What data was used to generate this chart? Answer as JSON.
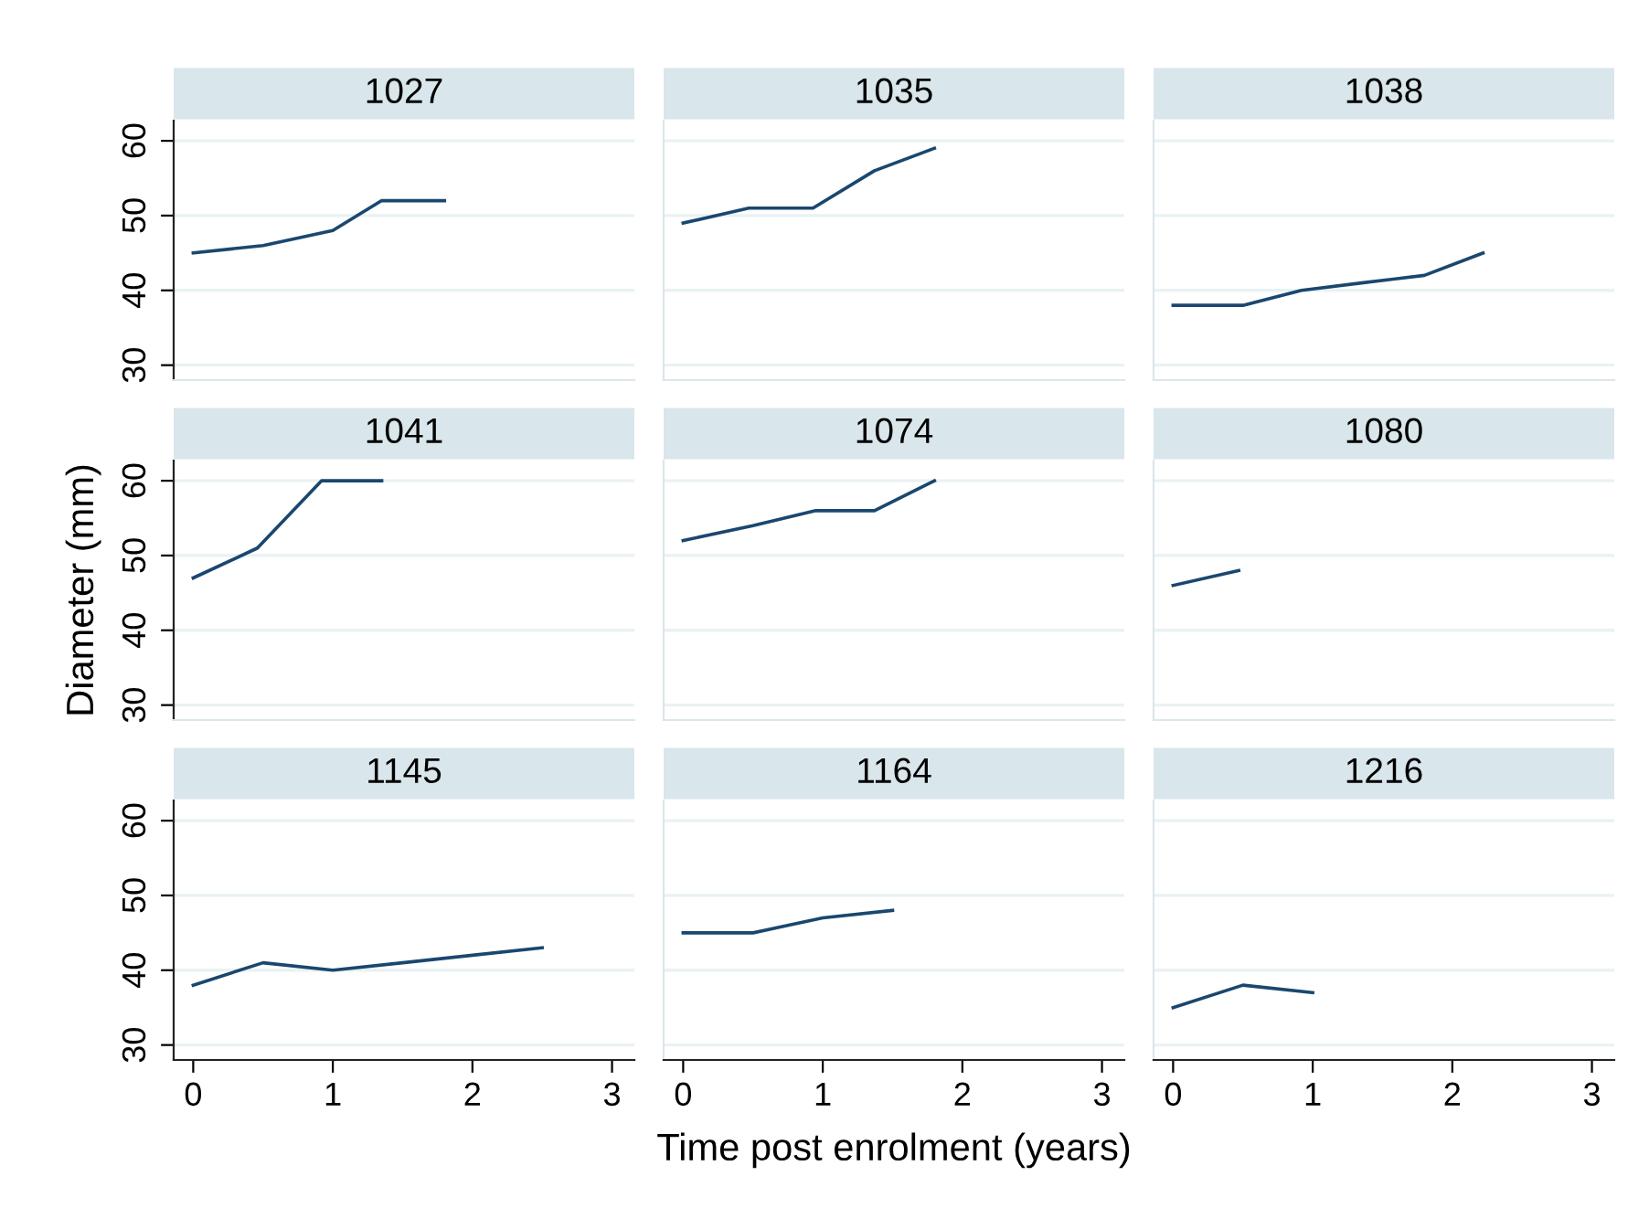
{
  "chart_data": [
    {
      "type": "line",
      "title": "1027",
      "x": [
        0,
        0.5,
        1,
        1.35,
        1.8
      ],
      "series": [
        {
          "color": "#1a476f",
          "values": [
            45,
            46,
            48,
            52,
            52
          ]
        }
      ],
      "xlim": [
        -0.14,
        3.16
      ],
      "ylim": [
        28,
        62.7
      ],
      "xticks": [
        0,
        1,
        2,
        3
      ],
      "yticks": [
        30,
        40,
        50,
        60
      ],
      "grid": "y",
      "tick_labels": "y"
    },
    {
      "type": "line",
      "title": "1035",
      "x": [
        0,
        0.47,
        0.93,
        1.37,
        1.8
      ],
      "series": [
        {
          "color": "#1a476f",
          "values": [
            49,
            51,
            51,
            56,
            59
          ]
        }
      ],
      "xlim": [
        -0.14,
        3.16
      ],
      "ylim": [
        28,
        62.7
      ],
      "xticks": [
        0,
        1,
        2,
        3
      ],
      "yticks": [
        30,
        40,
        50,
        60
      ],
      "grid": "y",
      "tick_labels": false
    },
    {
      "type": "line",
      "title": "1038",
      "x": [
        0,
        0.5,
        0.92,
        1.35,
        1.8,
        2.22
      ],
      "series": [
        {
          "color": "#1a476f",
          "values": [
            38,
            38,
            40,
            41,
            42,
            45
          ]
        }
      ],
      "xlim": [
        -0.14,
        3.16
      ],
      "ylim": [
        28,
        62.7
      ],
      "xticks": [
        0,
        1,
        2,
        3
      ],
      "yticks": [
        30,
        40,
        50,
        60
      ],
      "grid": "y",
      "tick_labels": false
    },
    {
      "type": "line",
      "title": "1041",
      "ylabel": "Diameter (mm)",
      "x": [
        0,
        0.46,
        0.92,
        1.35
      ],
      "series": [
        {
          "color": "#1a476f",
          "values": [
            47,
            51,
            60,
            60
          ]
        }
      ],
      "xlim": [
        -0.14,
        3.16
      ],
      "ylim": [
        28,
        62.7
      ],
      "xticks": [
        0,
        1,
        2,
        3
      ],
      "yticks": [
        30,
        40,
        50,
        60
      ],
      "grid": "y",
      "tick_labels": "y"
    },
    {
      "type": "line",
      "title": "1074",
      "x": [
        0,
        0.5,
        0.95,
        1.37,
        1.8
      ],
      "series": [
        {
          "color": "#1a476f",
          "values": [
            52,
            54,
            56,
            56,
            60
          ]
        }
      ],
      "xlim": [
        -0.14,
        3.16
      ],
      "ylim": [
        28,
        62.7
      ],
      "xticks": [
        0,
        1,
        2,
        3
      ],
      "yticks": [
        30,
        40,
        50,
        60
      ],
      "grid": "y",
      "tick_labels": false
    },
    {
      "type": "line",
      "title": "1080",
      "x": [
        0,
        0.47
      ],
      "series": [
        {
          "color": "#1a476f",
          "values": [
            46,
            48
          ]
        }
      ],
      "xlim": [
        -0.14,
        3.16
      ],
      "ylim": [
        28,
        62.7
      ],
      "xticks": [
        0,
        1,
        2,
        3
      ],
      "yticks": [
        30,
        40,
        50,
        60
      ],
      "grid": "y",
      "tick_labels": false
    },
    {
      "type": "line",
      "title": "1145",
      "x": [
        0,
        0.5,
        1,
        1.5,
        2,
        2.5
      ],
      "series": [
        {
          "color": "#1a476f",
          "values": [
            38,
            41,
            40,
            41,
            42,
            43
          ]
        }
      ],
      "xlim": [
        -0.14,
        3.16
      ],
      "ylim": [
        28,
        62.7
      ],
      "xticks": [
        0,
        1,
        2,
        3
      ],
      "yticks": [
        30,
        40,
        50,
        60
      ],
      "grid": "y"
    },
    {
      "type": "line",
      "title": "1164",
      "xlabel": "Time post enrolment (years)",
      "x": [
        0,
        0.5,
        1,
        1.5
      ],
      "series": [
        {
          "color": "#1a476f",
          "values": [
            45,
            45,
            47,
            48
          ]
        }
      ],
      "xlim": [
        -0.14,
        3.16
      ],
      "ylim": [
        28,
        62.7
      ],
      "xticks": [
        0,
        1,
        2,
        3
      ],
      "yticks": [
        30,
        40,
        50,
        60
      ],
      "grid": "y",
      "tick_labels": "x"
    },
    {
      "type": "line",
      "title": "1216",
      "x": [
        0,
        0.5,
        1
      ],
      "series": [
        {
          "color": "#1a476f",
          "values": [
            35,
            38,
            37
          ]
        }
      ],
      "xlim": [
        -0.14,
        3.16
      ],
      "ylim": [
        28,
        62.7
      ],
      "xticks": [
        0,
        1,
        2,
        3
      ],
      "yticks": [
        30,
        40,
        50,
        60
      ],
      "grid": "y",
      "tick_labels": "x"
    }
  ]
}
